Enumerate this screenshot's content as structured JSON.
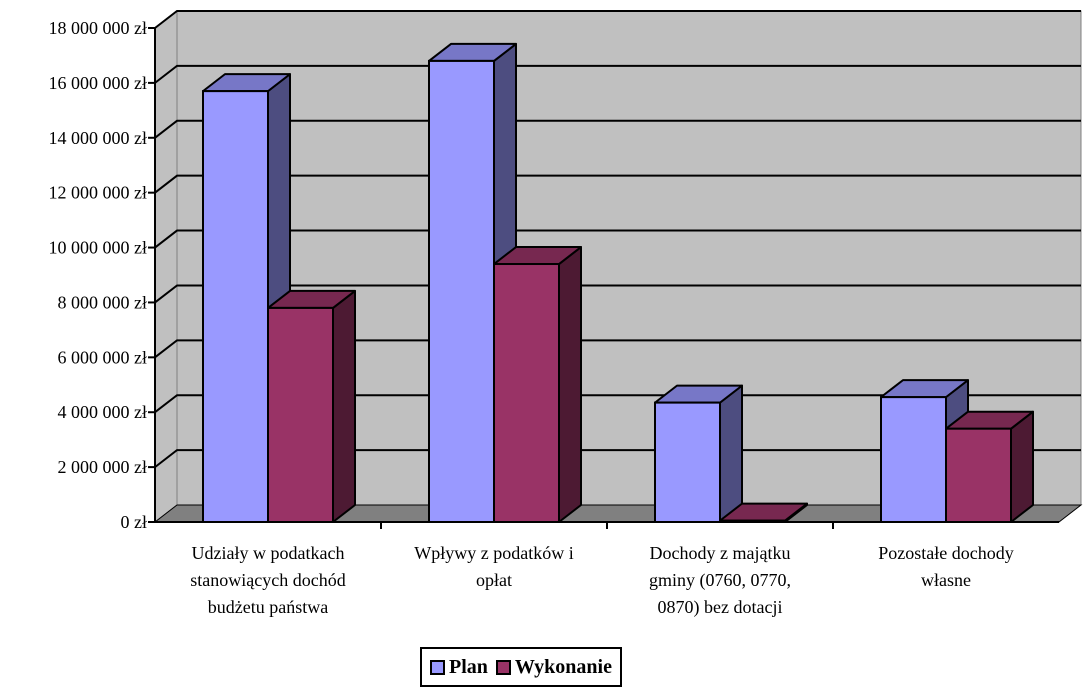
{
  "chart_data": {
    "type": "bar",
    "categories": [
      [
        "Udziały w podatkach",
        "stanowiących dochód",
        "budżetu państwa"
      ],
      [
        "Wpływy z podatków i",
        "opłat"
      ],
      [
        "Dochody z majątku",
        "gminy (0760, 0770,",
        "0870) bez dotacji"
      ],
      [
        "Pozostałe dochody",
        "własne"
      ]
    ],
    "series": [
      {
        "name": "Plan",
        "values": [
          15700000,
          16800000,
          4350000,
          4550000
        ],
        "color": "#9999ff"
      },
      {
        "name": "Wykonanie",
        "values": [
          7800000,
          9400000,
          50000,
          3400000
        ],
        "color": "#993366"
      }
    ],
    "ylim": [
      0,
      18000000
    ],
    "yticks": [
      0,
      2000000,
      4000000,
      6000000,
      8000000,
      10000000,
      12000000,
      14000000,
      16000000,
      18000000
    ],
    "ytick_labels": [
      "0 zł",
      "2 000 000 zł",
      "4 000 000 zł",
      "6 000 000 zł",
      "8 000 000 zł",
      "10 000 000 zł",
      "12 000 000 zł",
      "14 000 000 zł",
      "16 000 000 zł",
      "18 000 000 zł"
    ],
    "grid": true,
    "legend_position": "bottom",
    "style": "3d-clustered-column",
    "colors": {
      "wall": "#c0c0c0",
      "floor": "#808080"
    }
  },
  "legend": {
    "plan_label": "Plan",
    "wykonanie_label": "Wykonanie"
  }
}
